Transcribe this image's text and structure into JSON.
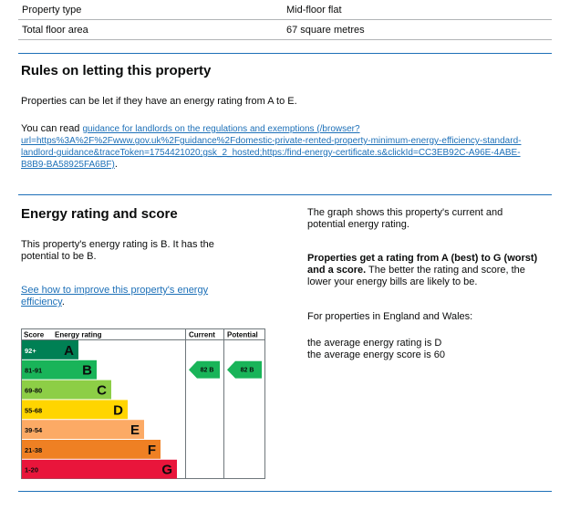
{
  "summary": [
    {
      "key": "Property type",
      "value": "Mid-floor flat"
    },
    {
      "key": "Total floor area",
      "value": "67 square metres"
    }
  ],
  "letting": {
    "heading": "Rules on letting this property",
    "intro": "Properties can be let if they have an energy rating from A to E.",
    "read_prefix": "You can read ",
    "link_line1": "guidance for landlords on the regulations and exemptions (/browser?",
    "link_line2": "url=https%3A%2F%2Fwww.gov.uk%2Fguidance%2Fdomestic-private-rented-property-minimum-energy-efficiency-standard-",
    "link_line3": "landlord-guidance&traceToken=1754421020;gsk_2_hosted;https:/find-energy-certificate.s&clickId=CC3EB92C-A96E-4ABE-",
    "link_line4": "B8B9-BA58925FA6BF)",
    "link_suffix": "."
  },
  "energy": {
    "heading": "Energy rating and score",
    "statement_l1": "This property's energy rating is B. It has the",
    "statement_l2": "potential to be B.",
    "improve_l1": "See how to improve this property's energy",
    "improve_l2": "efficiency",
    "improve_suffix": ".",
    "graph_l1": "The graph shows this property's current and",
    "graph_l2": "potential energy rating.",
    "bold_l1": "Properties get a rating from A (best) to G (worst)",
    "bold_l2": "and a score.",
    "rest_l1": " The better the rating and score, the",
    "rest_l2": "lower your energy bills are likely to be.",
    "england": "For properties in England and Wales:",
    "avg_rating": "the average energy rating is D",
    "avg_score": "the average energy score is 60"
  },
  "chart_data": {
    "type": "bar",
    "headers": {
      "score": "Score",
      "rating": "Energy rating",
      "current": "Current",
      "potential": "Potential"
    },
    "bands": [
      {
        "score": "92+",
        "letter": "A",
        "color": "#008054"
      },
      {
        "score": "81-91",
        "letter": "B",
        "color": "#19b459"
      },
      {
        "score": "69-80",
        "letter": "C",
        "color": "#8dce46"
      },
      {
        "score": "55-68",
        "letter": "D",
        "color": "#ffd500"
      },
      {
        "score": "39-54",
        "letter": "E",
        "color": "#fcaa65"
      },
      {
        "score": "21-38",
        "letter": "F",
        "color": "#ef8023"
      },
      {
        "score": "1-20",
        "letter": "G",
        "color": "#e9153b"
      }
    ],
    "current": {
      "label": "82  B",
      "score": 82,
      "band": "B"
    },
    "potential": {
      "label": "82  B",
      "score": 82,
      "band": "B"
    }
  }
}
